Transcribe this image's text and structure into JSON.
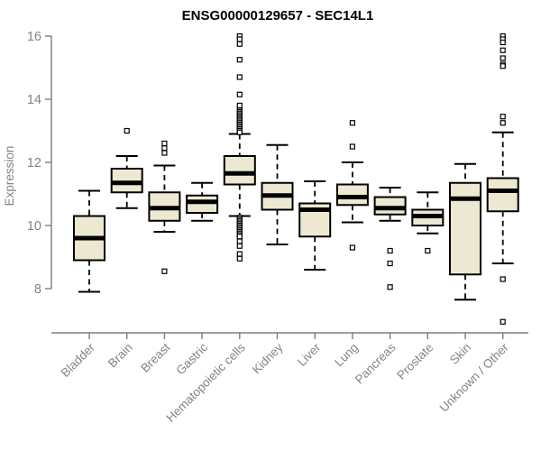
{
  "title": "ENSG00000129657 - SEC14L1",
  "chart_data": {
    "type": "boxplot",
    "title": "ENSG00000129657 - SEC14L1",
    "ylabel": "Expression",
    "xlabel": "",
    "yticks": [
      8,
      10,
      12,
      14,
      16
    ],
    "ylim": [
      6.5,
      16.4
    ],
    "grid": false,
    "legend": "none",
    "colors": {
      "box_fill": "#EDE8D1",
      "box_border": "#000000",
      "median": "#000000",
      "axis": "#7E7E7E",
      "tick_label": "#848484",
      "title": "#000000",
      "background": "#FFFFFF"
    },
    "categories": [
      "Bladder",
      "Brain",
      "Breast",
      "Gastric",
      "Hematopoietic cells",
      "Kidney",
      "Liver",
      "Lung",
      "Pancreas",
      "Prostate",
      "Skin",
      "Unknown / Other"
    ],
    "boxes": [
      {
        "category": "Bladder",
        "whisker_low": 7.9,
        "q1": 8.9,
        "median": 9.6,
        "q3": 10.3,
        "whisker_high": 11.1,
        "outliers": []
      },
      {
        "category": "Brain",
        "whisker_low": 10.55,
        "q1": 11.05,
        "median": 11.35,
        "q3": 11.8,
        "whisker_high": 12.2,
        "outliers": [
          13.0
        ]
      },
      {
        "category": "Breast",
        "whisker_low": 9.8,
        "q1": 10.15,
        "median": 10.55,
        "q3": 11.05,
        "whisker_high": 11.9,
        "outliers": [
          12.6,
          12.45,
          12.3,
          8.55
        ]
      },
      {
        "category": "Gastric",
        "whisker_low": 10.15,
        "q1": 10.4,
        "median": 10.75,
        "q3": 10.95,
        "whisker_high": 11.35,
        "outliers": []
      },
      {
        "category": "Hematopoietic cells",
        "whisker_low": 10.3,
        "q1": 11.3,
        "median": 11.65,
        "q3": 12.2,
        "whisker_high": 12.9,
        "outliers": [
          16.0,
          15.9,
          15.75,
          15.25,
          14.7,
          14.15,
          13.8,
          13.65,
          13.6,
          13.55,
          13.5,
          13.45,
          13.4,
          13.35,
          13.3,
          13.25,
          13.2,
          13.15,
          13.1,
          13.05,
          13.0,
          12.95,
          10.25,
          10.2,
          10.15,
          10.1,
          10.05,
          10.0,
          9.95,
          9.9,
          9.85,
          9.8,
          9.75,
          9.7,
          9.65,
          9.5,
          9.35,
          9.1,
          8.95
        ]
      },
      {
        "category": "Kidney",
        "whisker_low": 9.4,
        "q1": 10.5,
        "median": 10.95,
        "q3": 11.35,
        "whisker_high": 12.55,
        "outliers": []
      },
      {
        "category": "Liver",
        "whisker_low": 8.6,
        "q1": 9.65,
        "median": 10.5,
        "q3": 10.7,
        "whisker_high": 11.4,
        "outliers": []
      },
      {
        "category": "Lung",
        "whisker_low": 10.1,
        "q1": 10.65,
        "median": 10.9,
        "q3": 11.3,
        "whisker_high": 12.0,
        "outliers": [
          13.25,
          12.5,
          9.3
        ]
      },
      {
        "category": "Pancreas",
        "whisker_low": 10.15,
        "q1": 10.35,
        "median": 10.55,
        "q3": 10.9,
        "whisker_high": 11.2,
        "outliers": [
          9.2,
          8.8,
          8.05
        ]
      },
      {
        "category": "Prostate",
        "whisker_low": 9.75,
        "q1": 10.0,
        "median": 10.3,
        "q3": 10.5,
        "whisker_high": 11.05,
        "outliers": [
          9.2
        ]
      },
      {
        "category": "Skin",
        "whisker_low": 7.65,
        "q1": 8.45,
        "median": 10.85,
        "q3": 11.35,
        "whisker_high": 11.95,
        "outliers": []
      },
      {
        "category": "Unknown / Other",
        "whisker_low": 8.8,
        "q1": 10.45,
        "median": 11.1,
        "q3": 11.5,
        "whisker_high": 12.95,
        "outliers": [
          16.0,
          15.9,
          15.8,
          15.55,
          15.3,
          15.1,
          15.05,
          13.45,
          13.25,
          8.3,
          6.95
        ]
      }
    ]
  }
}
